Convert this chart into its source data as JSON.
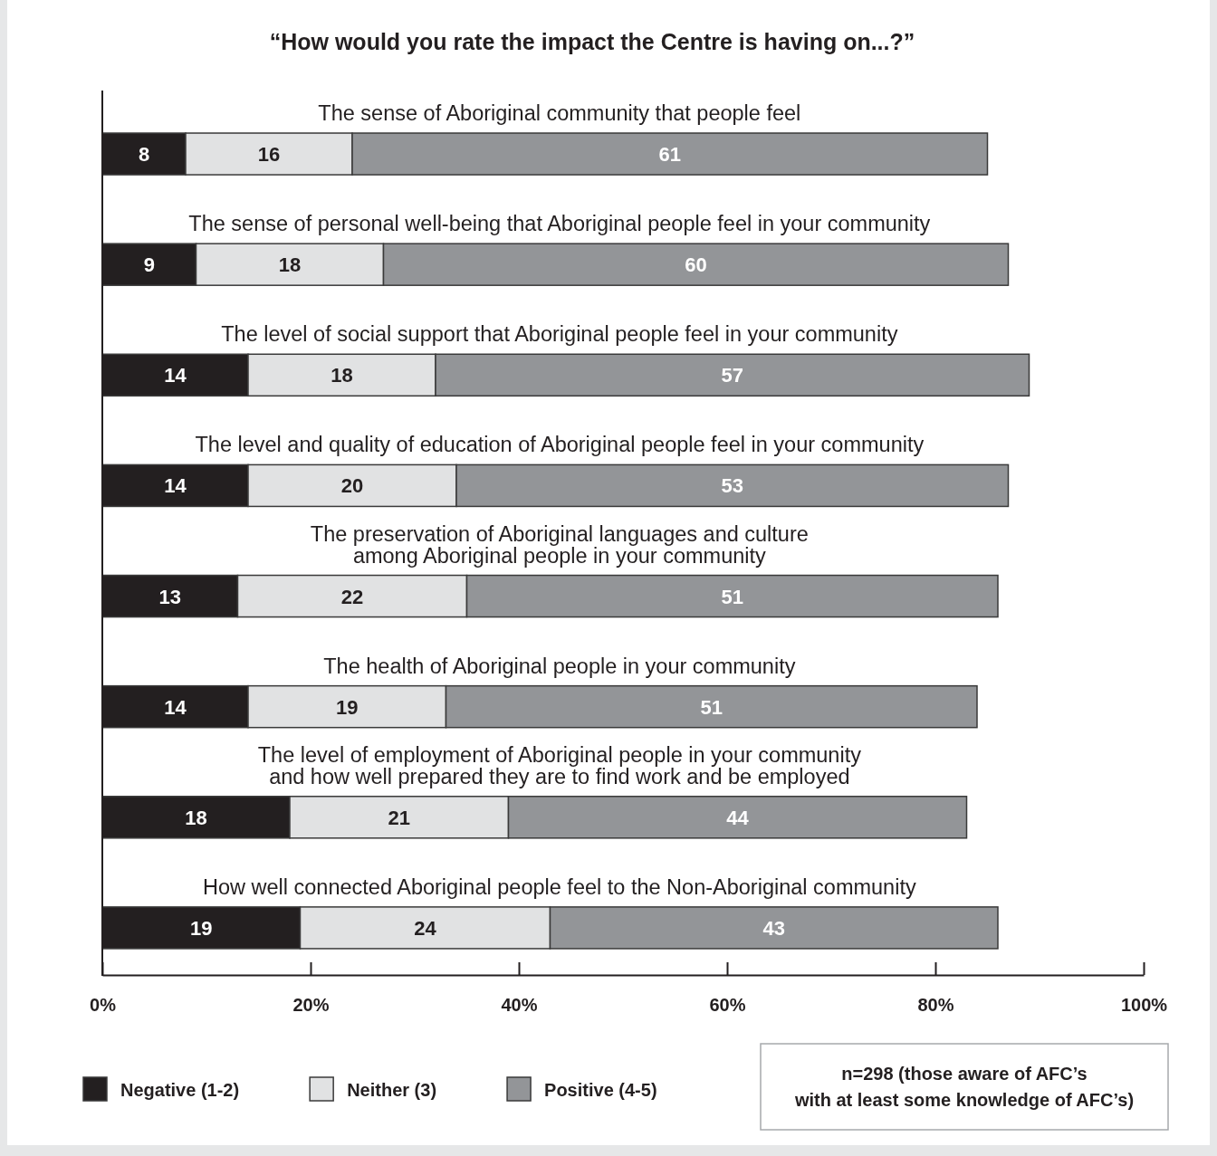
{
  "chart_data": {
    "type": "bar",
    "orientation": "horizontal",
    "stacked": true,
    "title": "“How would you rate the impact the Centre is having on...?”",
    "categories": [
      "The sense of Aboriginal community that people feel",
      "The sense of personal well-being that Aboriginal people feel in your community",
      "The level of social support that Aboriginal people feel in your community",
      "The level and quality of education of Aboriginal people feel in your community",
      "The preservation of Aboriginal languages and culture\namong Aboriginal people in your community",
      "The health of Aboriginal people in your community",
      "The level of employment of Aboriginal people in your community\nand how well prepared they are to find work and be employed",
      "How well connected Aboriginal people feel to the Non-Aboriginal community"
    ],
    "series": [
      {
        "name": "Negative (1-2)",
        "color": "#231f20",
        "values": [
          8,
          9,
          14,
          14,
          13,
          14,
          18,
          19
        ]
      },
      {
        "name": "Neither (3)",
        "color": "#e1e2e3",
        "values": [
          16,
          18,
          18,
          20,
          22,
          19,
          21,
          24
        ]
      },
      {
        "name": "Positive (4-5)",
        "color": "#939598",
        "values": [
          61,
          60,
          57,
          53,
          51,
          51,
          44,
          43
        ]
      }
    ],
    "xlim": [
      0,
      100
    ],
    "xticks": [
      {
        "value": 0,
        "label": "0%"
      },
      {
        "value": 20,
        "label": "20%"
      },
      {
        "value": 40,
        "label": "40%"
      },
      {
        "value": 60,
        "label": "60%"
      },
      {
        "value": 80,
        "label": "80%"
      },
      {
        "value": 100,
        "label": "100%"
      }
    ],
    "data_labels": true,
    "grid": false,
    "legend": "bottom left",
    "annotations": [
      "n=298 (those aware of AFC’s\nwith at least some knowledge of AFC’s)"
    ]
  }
}
